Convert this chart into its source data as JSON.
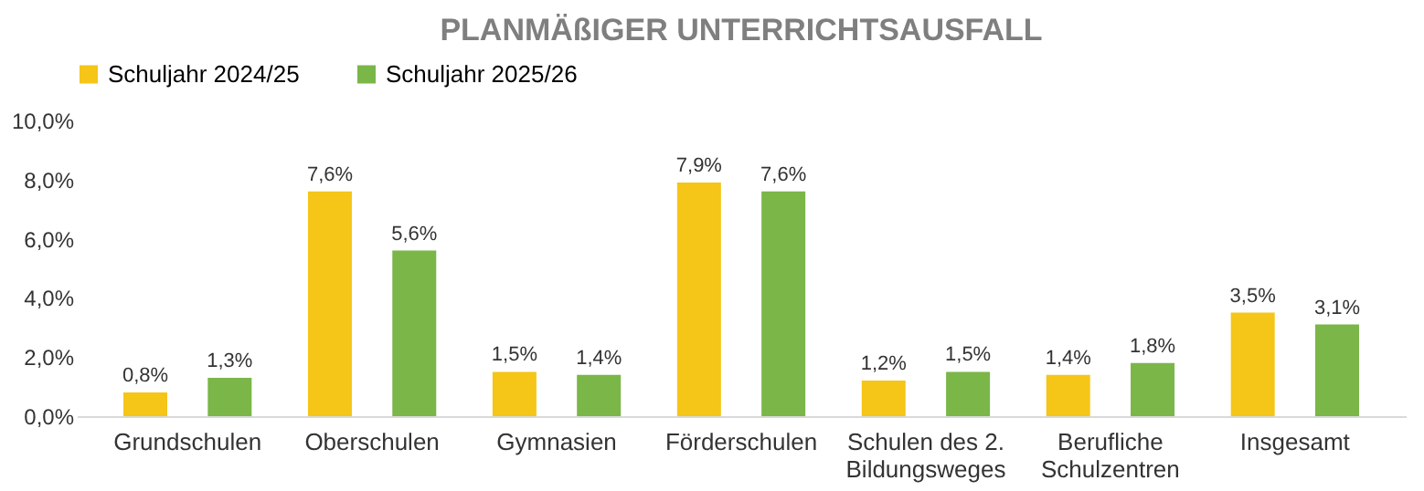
{
  "chart_data": {
    "type": "bar",
    "title": "PLANMÄßIGER UNTERRICHTSAUSFALL",
    "categories": [
      "Grundschulen",
      "Oberschulen",
      "Gymnasien",
      "Förderschulen",
      "Schulen des 2. Bildungsweges",
      "Berufliche Schulzentren",
      "Insgesamt"
    ],
    "series": [
      {
        "name": "Schuljahr 2024/25",
        "color": "#f5c518",
        "values": [
          0.8,
          7.6,
          1.5,
          7.9,
          1.2,
          1.4,
          3.5
        ],
        "value_labels": [
          "0,8%",
          "7,6%",
          "1,5%",
          "7,9%",
          "1,2%",
          "1,4%",
          "3,5%"
        ]
      },
      {
        "name": "Schuljahr 2025/26",
        "color": "#7ab648",
        "values": [
          1.3,
          5.6,
          1.4,
          7.6,
          1.5,
          1.8,
          3.1
        ],
        "value_labels": [
          "1,3%",
          "5,6%",
          "1,4%",
          "7,6%",
          "1,5%",
          "1,8%",
          "3,1%"
        ]
      }
    ],
    "ylim": [
      0,
      10
    ],
    "yticks": [
      {
        "value": 0,
        "label": "0,0%"
      },
      {
        "value": 2,
        "label": "2,0%"
      },
      {
        "value": 4,
        "label": "4,0%"
      },
      {
        "value": 6,
        "label": "6,0%"
      },
      {
        "value": 8,
        "label": "8,0%"
      },
      {
        "value": 10,
        "label": "10,0%"
      }
    ],
    "grid": false,
    "legend": "top"
  }
}
